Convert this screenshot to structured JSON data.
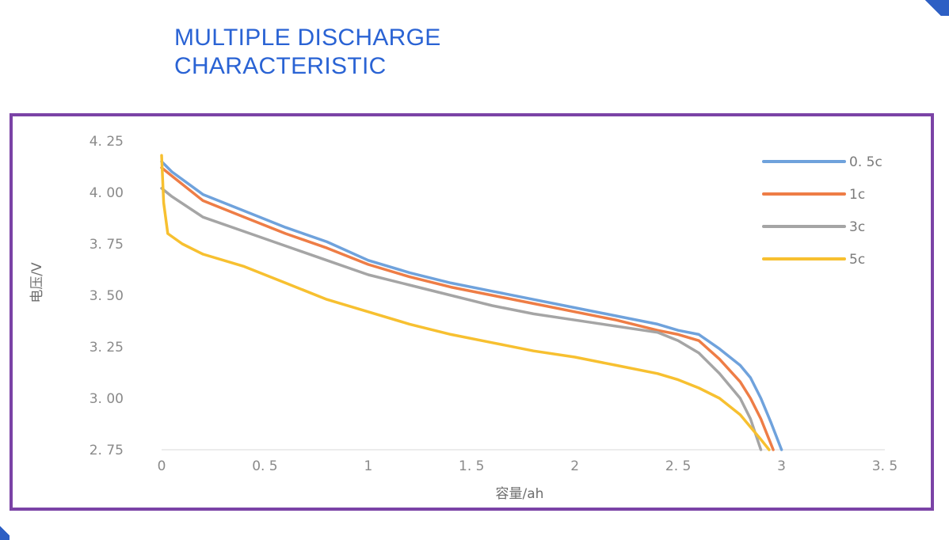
{
  "title_lines": [
    "MULTIPLE DISCHARGE",
    "CHARACTERISTIC"
  ],
  "colors": {
    "title": "#2a63d4",
    "frame": "#7b43a6",
    "corner": "#2d5fc4"
  },
  "chart_data": {
    "type": "line",
    "title": "MULTIPLE DISCHARGE CHARACTERISTIC",
    "xlabel": "容量/ah",
    "ylabel": "电压/V",
    "xlim": [
      0,
      3.5
    ],
    "ylim": [
      2.75,
      4.25
    ],
    "x_ticks": [
      0,
      0.5,
      1,
      1.5,
      2,
      2.5,
      3,
      3.5
    ],
    "x_tick_labels": [
      "0",
      "0. 5",
      "1",
      "1. 5",
      "2",
      "2. 5",
      "3",
      "3. 5"
    ],
    "y_ticks": [
      2.75,
      3.0,
      3.25,
      3.5,
      3.75,
      4.0,
      4.25
    ],
    "y_tick_labels": [
      "2. 75",
      "3. 00",
      "3. 25",
      "3. 50",
      "3. 75",
      "4. 00",
      "4. 25"
    ],
    "grid": false,
    "legend_position": "top-right",
    "series": [
      {
        "name": "0. 5c",
        "color": "#6fa2dc",
        "points": [
          [
            0,
            4.15
          ],
          [
            0.05,
            4.1
          ],
          [
            0.2,
            3.99
          ],
          [
            0.4,
            3.91
          ],
          [
            0.6,
            3.83
          ],
          [
            0.8,
            3.76
          ],
          [
            1.0,
            3.67
          ],
          [
            1.2,
            3.61
          ],
          [
            1.4,
            3.56
          ],
          [
            1.6,
            3.52
          ],
          [
            1.8,
            3.48
          ],
          [
            2.0,
            3.44
          ],
          [
            2.2,
            3.4
          ],
          [
            2.4,
            3.36
          ],
          [
            2.5,
            3.33
          ],
          [
            2.6,
            3.31
          ],
          [
            2.7,
            3.24
          ],
          [
            2.8,
            3.16
          ],
          [
            2.85,
            3.1
          ],
          [
            2.9,
            3.0
          ],
          [
            2.95,
            2.88
          ],
          [
            3.0,
            2.75
          ]
        ]
      },
      {
        "name": "1c",
        "color": "#ee7d46",
        "points": [
          [
            0,
            4.12
          ],
          [
            0.05,
            4.08
          ],
          [
            0.2,
            3.96
          ],
          [
            0.4,
            3.88
          ],
          [
            0.6,
            3.8
          ],
          [
            0.8,
            3.73
          ],
          [
            1.0,
            3.65
          ],
          [
            1.2,
            3.59
          ],
          [
            1.4,
            3.54
          ],
          [
            1.6,
            3.5
          ],
          [
            1.8,
            3.46
          ],
          [
            2.0,
            3.42
          ],
          [
            2.2,
            3.38
          ],
          [
            2.4,
            3.33
          ],
          [
            2.5,
            3.31
          ],
          [
            2.6,
            3.28
          ],
          [
            2.7,
            3.19
          ],
          [
            2.8,
            3.08
          ],
          [
            2.85,
            3.0
          ],
          [
            2.9,
            2.9
          ],
          [
            2.96,
            2.75
          ]
        ]
      },
      {
        "name": "3c",
        "color": "#a5a5a5",
        "points": [
          [
            0,
            4.02
          ],
          [
            0.05,
            3.98
          ],
          [
            0.2,
            3.88
          ],
          [
            0.4,
            3.81
          ],
          [
            0.6,
            3.74
          ],
          [
            0.8,
            3.67
          ],
          [
            1.0,
            3.6
          ],
          [
            1.2,
            3.55
          ],
          [
            1.4,
            3.5
          ],
          [
            1.6,
            3.45
          ],
          [
            1.8,
            3.41
          ],
          [
            2.0,
            3.38
          ],
          [
            2.2,
            3.35
          ],
          [
            2.4,
            3.32
          ],
          [
            2.5,
            3.28
          ],
          [
            2.6,
            3.22
          ],
          [
            2.7,
            3.12
          ],
          [
            2.8,
            3.0
          ],
          [
            2.85,
            2.9
          ],
          [
            2.9,
            2.75
          ]
        ]
      },
      {
        "name": "5c",
        "color": "#f7c030",
        "points": [
          [
            0,
            4.18
          ],
          [
            0.01,
            3.95
          ],
          [
            0.03,
            3.8
          ],
          [
            0.1,
            3.75
          ],
          [
            0.2,
            3.7
          ],
          [
            0.4,
            3.64
          ],
          [
            0.6,
            3.56
          ],
          [
            0.8,
            3.48
          ],
          [
            1.0,
            3.42
          ],
          [
            1.2,
            3.36
          ],
          [
            1.4,
            3.31
          ],
          [
            1.6,
            3.27
          ],
          [
            1.8,
            3.23
          ],
          [
            2.0,
            3.2
          ],
          [
            2.2,
            3.16
          ],
          [
            2.4,
            3.12
          ],
          [
            2.5,
            3.09
          ],
          [
            2.6,
            3.05
          ],
          [
            2.7,
            3.0
          ],
          [
            2.8,
            2.92
          ],
          [
            2.9,
            2.8
          ],
          [
            2.94,
            2.75
          ]
        ]
      }
    ]
  }
}
